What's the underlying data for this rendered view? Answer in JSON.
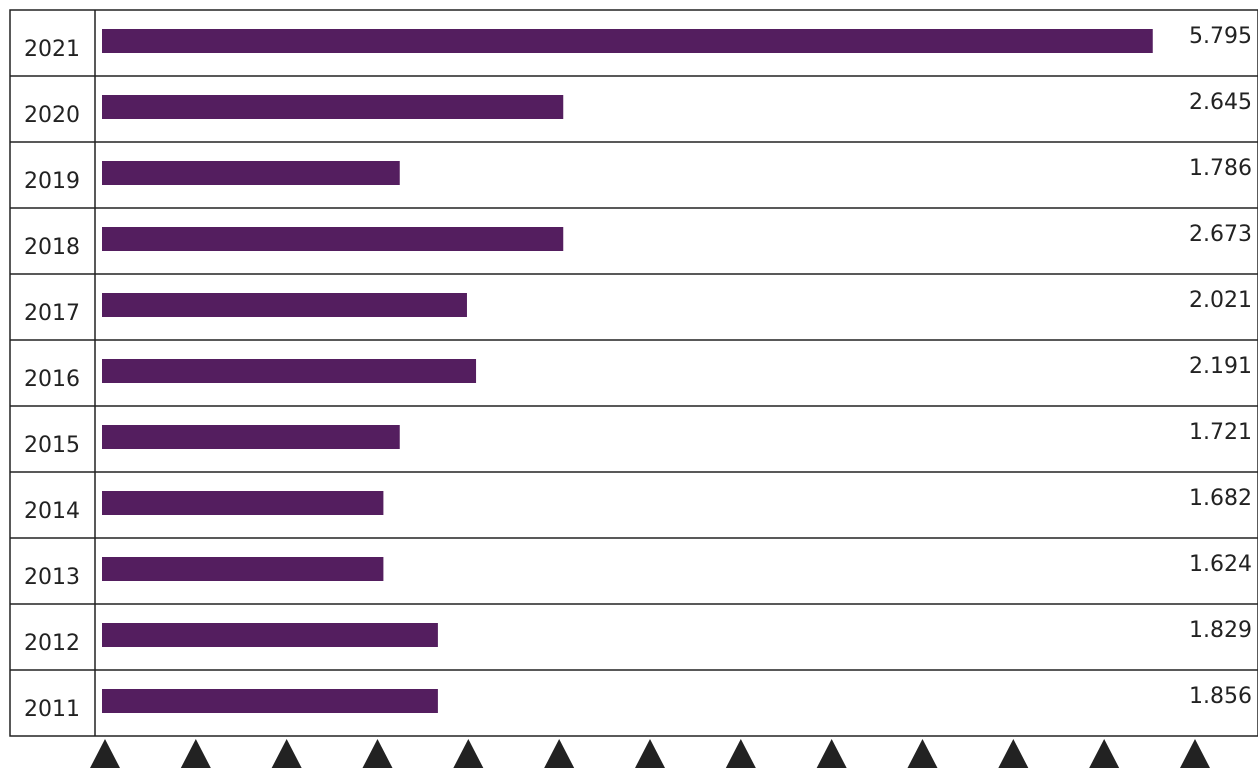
{
  "chart_data": {
    "type": "bar",
    "orientation": "horizontal",
    "categories": [
      "2021",
      "2020",
      "2019",
      "2018",
      "2017",
      "2016",
      "2015",
      "2014",
      "2013",
      "2012",
      "2011"
    ],
    "series": [
      {
        "values": [
          5795,
          2645,
          1786,
          2673,
          2021,
          2191,
          1721,
          1682,
          1624,
          1829,
          1856
        ],
        "data_labels": [
          "5.795",
          "2.645",
          "1.786",
          "2.673",
          "2.021",
          "2.191",
          "1.721",
          "1.682",
          "1.624",
          "1.829",
          "1.856"
        ]
      }
    ],
    "bar_lengths_shown": [
      5795,
      2550,
      1650,
      2550,
      2020,
      2070,
      1650,
      1560,
      1560,
      1860,
      1860
    ],
    "xlim": [
      0,
      6000
    ],
    "x_ticks": [
      "0",
      "1000",
      "2000",
      "3000",
      "4000",
      "5000",
      "6000"
    ],
    "x_tick_markers": [
      0,
      500,
      1000,
      1500,
      2000,
      2500,
      3000,
      3500,
      4000,
      4500,
      5000,
      5500,
      6000
    ],
    "title": "",
    "xlabel": "",
    "ylabel": "",
    "grid": "horizontal row separators",
    "bar_color": "#541e5f",
    "line_color": "#222222",
    "marker_color": "#222222"
  }
}
